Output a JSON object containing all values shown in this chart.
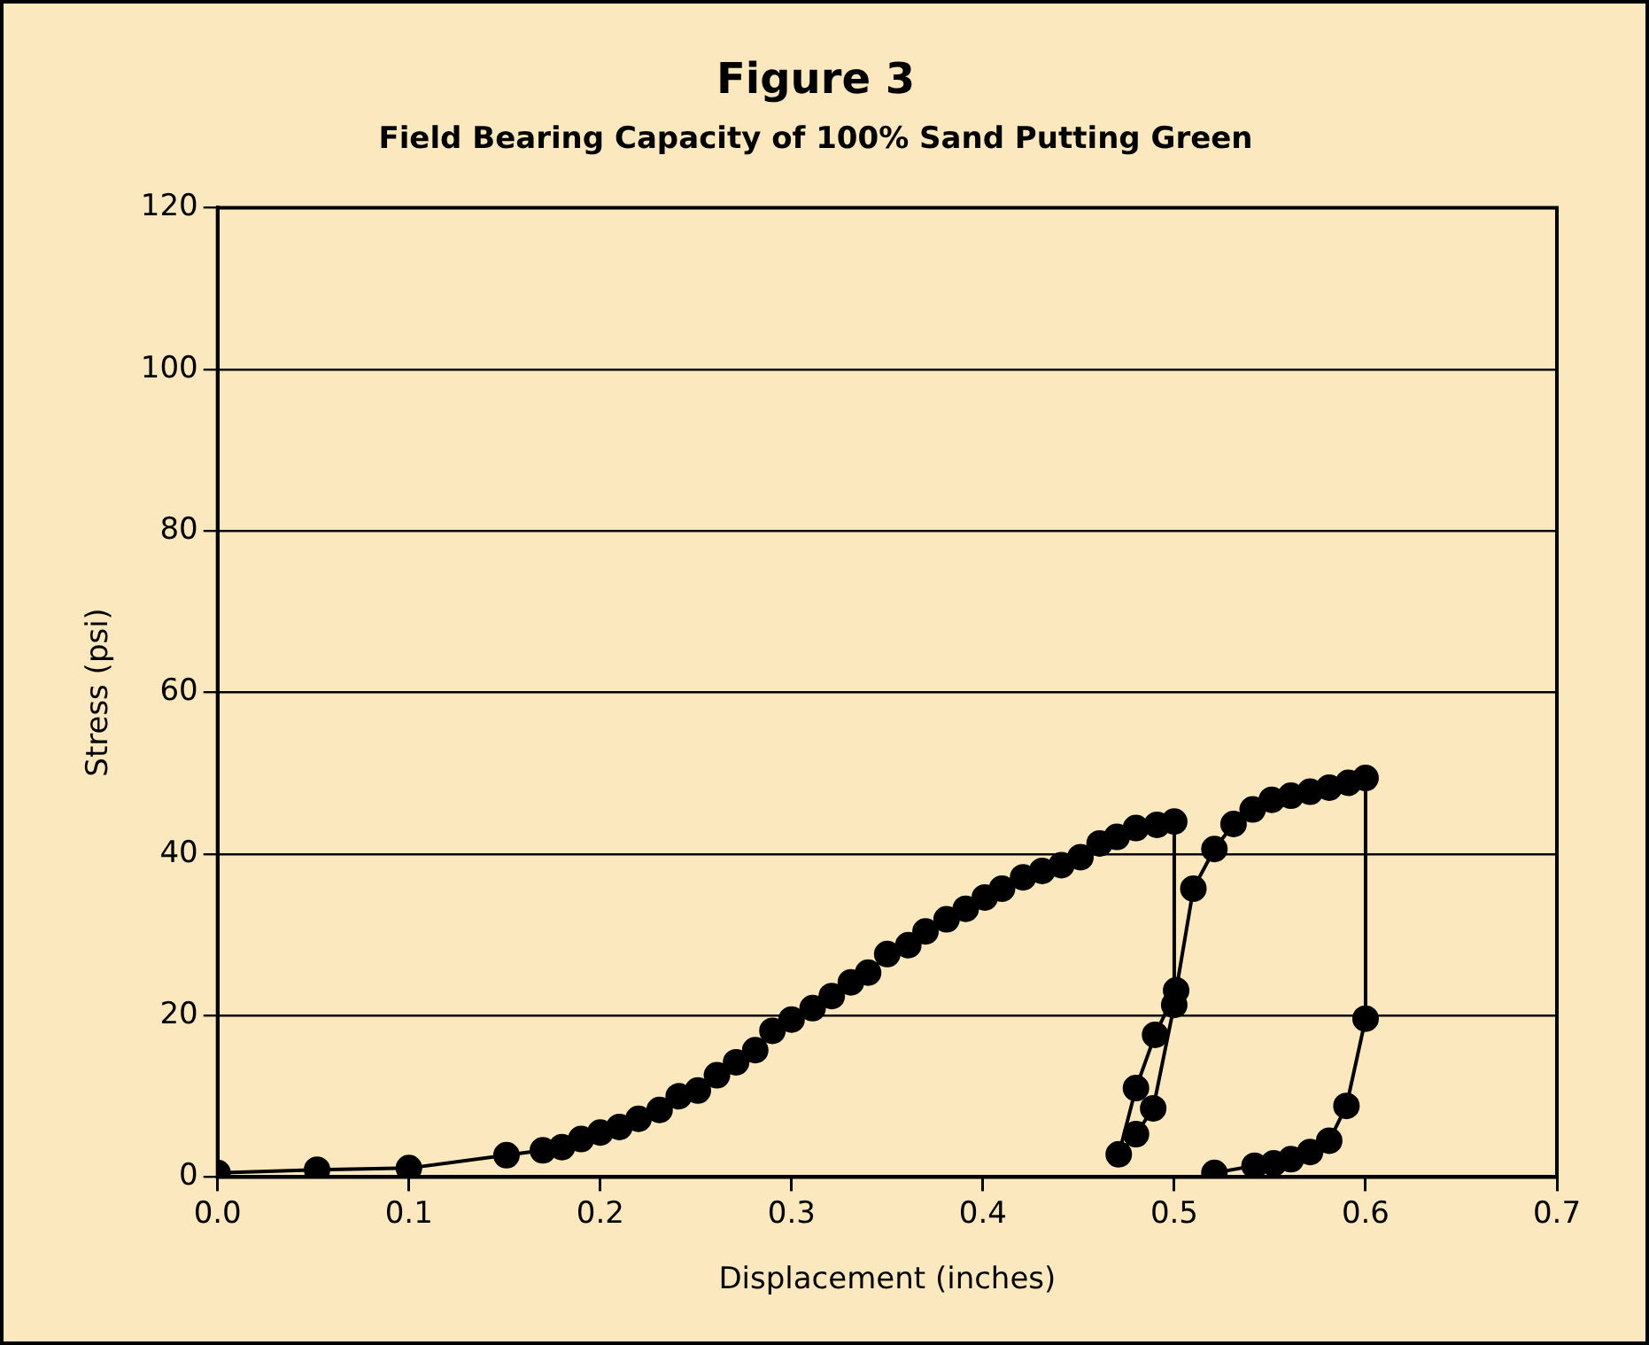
{
  "chart_data": {
    "type": "line",
    "title": "Figure 3",
    "subtitle": "Field Bearing Capacity of 100% Sand Putting Green",
    "xlabel": "Displacement (inches)",
    "ylabel": "Stress (psi)",
    "x": [
      0,
      0.052,
      0.1,
      0.151,
      0.17,
      0.18,
      0.19,
      0.2,
      0.21,
      0.22,
      0.231,
      0.241,
      0.251,
      0.261,
      0.271,
      0.281,
      0.29,
      0.3,
      0.311,
      0.321,
      0.331,
      0.34,
      0.35,
      0.361,
      0.37,
      0.381,
      0.391,
      0.401,
      0.41,
      0.421,
      0.431,
      0.441,
      0.451,
      0.461,
      0.47,
      0.48,
      0.491,
      0.5,
      0.5,
      0.489,
      0.48,
      0.471,
      0.48,
      0.49,
      0.501,
      0.51,
      0.521,
      0.531,
      0.541,
      0.551,
      0.561,
      0.571,
      0.581,
      0.591,
      0.6,
      0.6,
      0.59,
      0.581,
      0.571,
      0.561,
      0.552,
      0.542,
      0.521
    ],
    "series": [
      {
        "color": "#000000",
        "values": [
          0.5,
          0.9,
          1.1,
          2.7,
          3.3,
          3.7,
          4.7,
          5.5,
          6.2,
          7.2,
          8.3,
          10,
          10.7,
          12.6,
          14.2,
          15.7,
          18.1,
          19.5,
          20.9,
          22.4,
          24.1,
          25.3,
          27.6,
          28.7,
          30.4,
          31.9,
          33.2,
          34.6,
          35.7,
          37.1,
          37.9,
          38.6,
          39.6,
          41.3,
          42.1,
          43.2,
          43.6,
          44,
          21.3,
          8.5,
          5.3,
          2.8,
          11,
          17.6,
          23.1,
          35.7,
          40.6,
          43.7,
          45.5,
          46.7,
          47.2,
          47.7,
          48.2,
          48.8,
          49.4,
          19.6,
          8.8,
          4.5,
          3.1,
          2.2,
          1.7,
          1.4,
          0.5
        ]
      }
    ],
    "xlim": [
      0,
      0.7
    ],
    "xticks": [
      {
        "value": 0,
        "label": "0.0"
      },
      0.1,
      0.2,
      0.3,
      0.4,
      0.5,
      0.6,
      0.7
    ],
    "ylim": [
      0,
      120
    ],
    "yticks": [
      0,
      20,
      40,
      60,
      80,
      100,
      120
    ],
    "grid": "y",
    "marker": "circle",
    "line_style": "solid"
  }
}
